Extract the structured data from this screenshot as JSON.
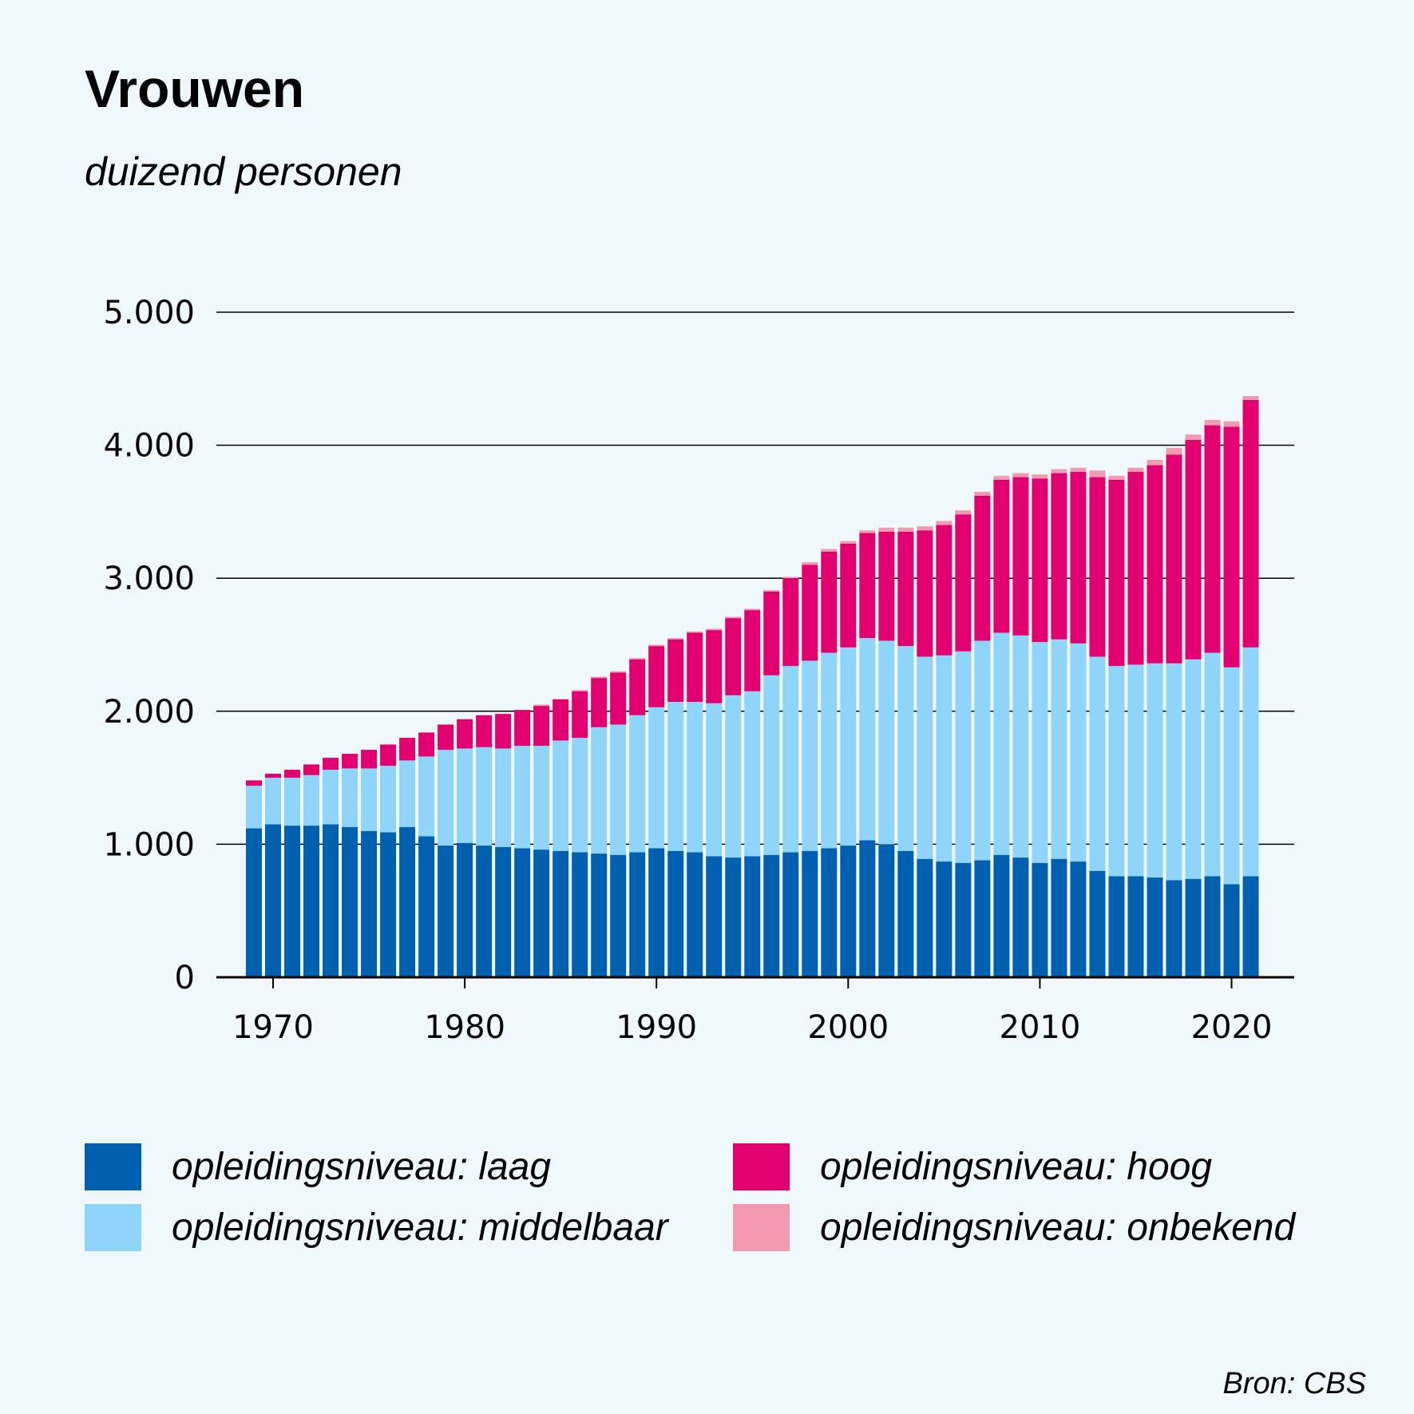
{
  "chart_data": {
    "type": "bar",
    "stacked": true,
    "title": "Vrouwen",
    "subtitle": "duizend personen",
    "source": "Bron: CBS",
    "ylim": [
      0,
      5000
    ],
    "y_ticks": [
      0,
      1000,
      2000,
      3000,
      4000,
      5000
    ],
    "y_tick_labels": [
      "0",
      "1.000",
      "2.000",
      "3.000",
      "4.000",
      "5.000"
    ],
    "x_ticks": [
      1970,
      1980,
      1990,
      2000,
      2010,
      2020
    ],
    "x_tick_labels": [
      "1970",
      "1980",
      "1990",
      "2000",
      "2010",
      "2020"
    ],
    "grid": true,
    "legend_position": "bottom",
    "categories": [
      1969,
      1970,
      1971,
      1972,
      1973,
      1974,
      1975,
      1976,
      1977,
      1978,
      1979,
      1980,
      1981,
      1982,
      1983,
      1984,
      1985,
      1986,
      1987,
      1988,
      1989,
      1990,
      1991,
      1992,
      1993,
      1994,
      1995,
      1996,
      1997,
      1998,
      1999,
      2000,
      2001,
      2002,
      2003,
      2004,
      2005,
      2006,
      2007,
      2008,
      2009,
      2010,
      2011,
      2012,
      2013,
      2014,
      2015,
      2016,
      2017,
      2018,
      2019,
      2020,
      2021
    ],
    "series": [
      {
        "name": "opleidingsniveau: laag",
        "color": "#0060b0",
        "values": [
          1120,
          1150,
          1140,
          1140,
          1150,
          1130,
          1100,
          1090,
          1130,
          1060,
          990,
          1010,
          990,
          980,
          970,
          960,
          950,
          940,
          930,
          920,
          940,
          970,
          950,
          940,
          910,
          900,
          910,
          920,
          940,
          950,
          970,
          990,
          1030,
          1000,
          950,
          890,
          870,
          860,
          880,
          920,
          900,
          860,
          890,
          870,
          800,
          760,
          760,
          750,
          730,
          740,
          760,
          700,
          760
        ]
      },
      {
        "name": "opleidingsniveau: middelbaar",
        "color": "#8fd4fb",
        "values": [
          320,
          350,
          360,
          380,
          410,
          440,
          470,
          500,
          500,
          600,
          720,
          710,
          740,
          740,
          770,
          780,
          830,
          860,
          950,
          980,
          1030,
          1060,
          1120,
          1130,
          1150,
          1220,
          1240,
          1350,
          1400,
          1430,
          1470,
          1490,
          1520,
          1530,
          1540,
          1520,
          1550,
          1590,
          1650,
          1670,
          1670,
          1660,
          1650,
          1640,
          1610,
          1580,
          1590,
          1610,
          1630,
          1650,
          1680,
          1630,
          1720
        ]
      },
      {
        "name": "opleidingsniveau: hoog",
        "color": "#e2006f",
        "values": [
          40,
          30,
          60,
          80,
          90,
          110,
          140,
          160,
          170,
          180,
          190,
          220,
          240,
          260,
          270,
          300,
          310,
          350,
          370,
          390,
          420,
          460,
          470,
          520,
          550,
          580,
          610,
          630,
          660,
          720,
          760,
          780,
          790,
          820,
          860,
          950,
          980,
          1030,
          1090,
          1150,
          1190,
          1230,
          1250,
          1290,
          1350,
          1400,
          1450,
          1490,
          1570,
          1650,
          1710,
          1810,
          1860
        ]
      },
      {
        "name": "opleidingsniveau: onbekend",
        "color": "#f29ab0",
        "values": [
          0,
          0,
          0,
          0,
          0,
          0,
          0,
          0,
          0,
          0,
          0,
          0,
          0,
          0,
          0,
          10,
          0,
          10,
          10,
          10,
          10,
          10,
          10,
          10,
          10,
          10,
          10,
          10,
          10,
          20,
          20,
          20,
          20,
          30,
          30,
          30,
          30,
          30,
          30,
          30,
          30,
          30,
          30,
          30,
          50,
          30,
          30,
          40,
          50,
          40,
          40,
          40,
          30
        ]
      }
    ]
  }
}
